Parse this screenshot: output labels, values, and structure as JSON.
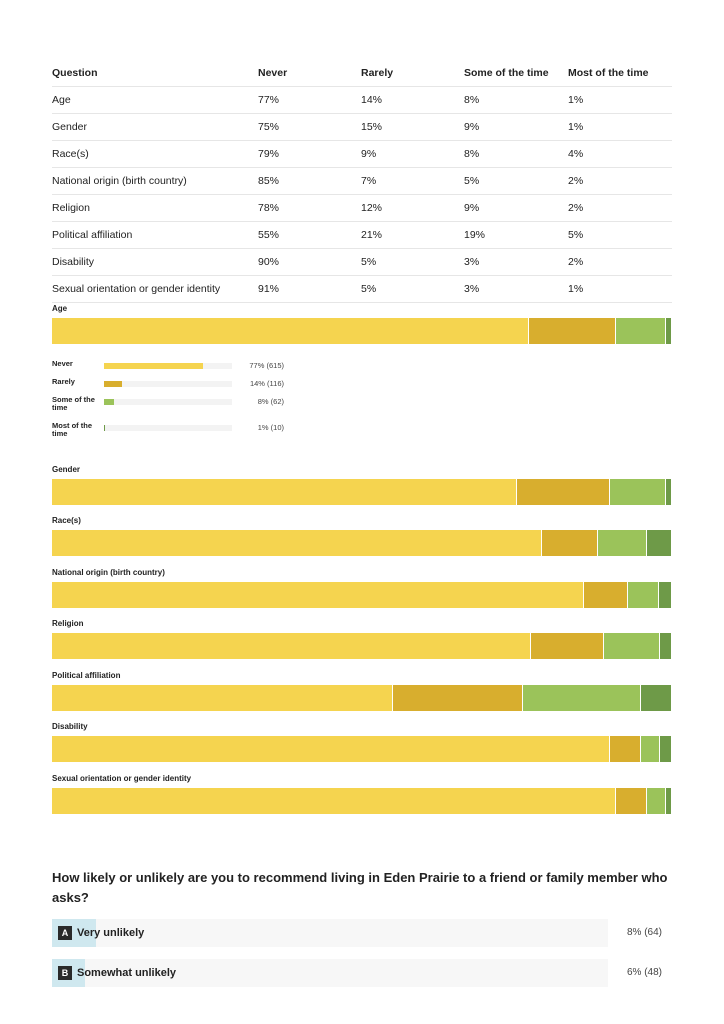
{
  "colors": {
    "never": "#f5d44f",
    "rarely": "#d8ae2e",
    "some": "#9bc35a",
    "most": "#6e9a48"
  },
  "table": {
    "headers": [
      "Question",
      "Never",
      "Rarely",
      "Some of the time",
      "Most of the time"
    ],
    "rows": [
      [
        "Age",
        "77%",
        "14%",
        "8%",
        "1%"
      ],
      [
        "Gender",
        "75%",
        "15%",
        "9%",
        "1%"
      ],
      [
        "Race(s)",
        "79%",
        "9%",
        "8%",
        "4%"
      ],
      [
        "National origin (birth country)",
        "85%",
        "7%",
        "5%",
        "2%"
      ],
      [
        "Religion",
        "78%",
        "12%",
        "9%",
        "2%"
      ],
      [
        "Political affiliation",
        "55%",
        "21%",
        "19%",
        "5%"
      ],
      [
        "Disability",
        "90%",
        "5%",
        "3%",
        "2%"
      ],
      [
        "Sexual orientation or gender identity",
        "91%",
        "5%",
        "3%",
        "1%"
      ]
    ]
  },
  "breakdown": {
    "items": [
      {
        "label": "Never",
        "value": "77% (615)",
        "pct": 77
      },
      {
        "label": "Rarely",
        "value": "14% (116)",
        "pct": 14
      },
      {
        "label": "Some of the time",
        "value": "8% (62)",
        "pct": 8
      },
      {
        "label": "Most of the time",
        "value": "1% (10)",
        "pct": 1
      }
    ]
  },
  "chart_data": {
    "type": "bar",
    "stacked": true,
    "orientation": "horizontal",
    "categories": [
      "Age",
      "Gender",
      "Race(s)",
      "National origin (birth country)",
      "Religion",
      "Political affiliation",
      "Disability",
      "Sexual orientation or gender identity"
    ],
    "series": [
      {
        "name": "Never",
        "values": [
          77,
          75,
          79,
          85,
          78,
          55,
          90,
          91
        ]
      },
      {
        "name": "Rarely",
        "values": [
          14,
          15,
          9,
          7,
          12,
          21,
          5,
          5
        ]
      },
      {
        "name": "Some of the time",
        "values": [
          8,
          9,
          8,
          5,
          9,
          19,
          3,
          3
        ]
      },
      {
        "name": "Most of the time",
        "values": [
          1,
          1,
          4,
          2,
          2,
          5,
          2,
          1
        ]
      }
    ],
    "xlim": [
      0,
      100
    ]
  },
  "question": {
    "text": "How likely or unlikely are you to recommend living in Eden Prairie to a friend or family member who asks?",
    "answers": [
      {
        "letter": "A",
        "label": "Very unlikely",
        "value": "8% (64)",
        "pct": 8
      },
      {
        "letter": "B",
        "label": "Somewhat unlikely",
        "value": "6% (48)",
        "pct": 6
      }
    ]
  }
}
